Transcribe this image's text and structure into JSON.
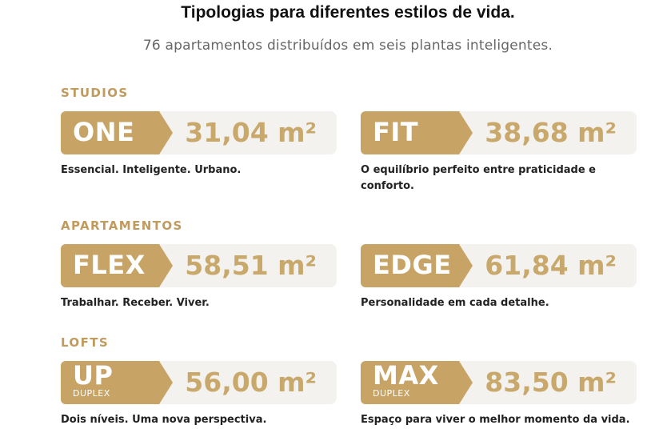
{
  "header": {
    "title": "Tipologias para diferentes estilos de vida.",
    "subtitle": "76 apartamentos distribuídos em seis plantas inteligentes."
  },
  "sections": [
    {
      "label": "STUDIOS",
      "units": [
        {
          "name": "ONE",
          "area": "31,04 m²",
          "description": "Essencial. Inteligente. Urbano."
        },
        {
          "name": "FIT",
          "area": "38,68 m²",
          "description": "O equilíbrio perfeito entre praticidade e conforto."
        }
      ]
    },
    {
      "label": "APARTAMENTOS",
      "units": [
        {
          "name": "FLEX",
          "area": "58,51 m²",
          "description": "Trabalhar. Receber. Viver."
        },
        {
          "name": "EDGE",
          "area": "61,84 m²",
          "description": "Personalidade em cada detalhe."
        }
      ]
    },
    {
      "label": "LOFTS",
      "units": [
        {
          "name": "UP",
          "sub": "DUPLEX",
          "area": "56,00 m²",
          "description": "Dois níveis. Uma nova perspectiva."
        },
        {
          "name": "MAX",
          "sub": "DUPLEX",
          "area": "83,50 m²",
          "description": "Espaço para viver o melhor momento da vida."
        }
      ]
    }
  ],
  "colors": {
    "accent": "#c7a465",
    "area_text": "#c9a86c",
    "card_bg": "#f3f2ee",
    "section_label": "#c19a5d"
  }
}
